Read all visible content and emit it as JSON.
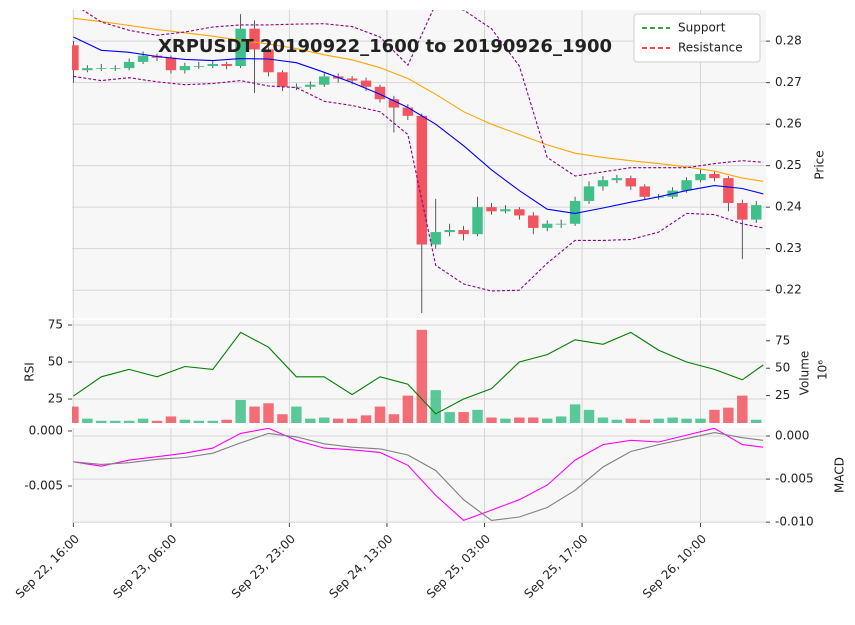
{
  "chart_data": [
    {
      "type": "candlestick",
      "title": "XRPUSDT 20190922_1600 to 20190926_1900",
      "ylabel": "Price",
      "xlim": [
        -0.2,
        99.4
      ],
      "ylim": [
        0.2133,
        0.2875
      ],
      "yticks": [
        0.22,
        0.23,
        0.24,
        0.25,
        0.26,
        0.27,
        0.28
      ],
      "grid": true,
      "up_color": "#3fbf8a",
      "down_color": "#f25560",
      "x": [
        0,
        2,
        4,
        6,
        8,
        10,
        12,
        14,
        16,
        18,
        20,
        22,
        24,
        26,
        28,
        30,
        32,
        34,
        36,
        38,
        40,
        42,
        44,
        46,
        48,
        50,
        52,
        54,
        56,
        58,
        60,
        62,
        64,
        66,
        68,
        70,
        72,
        74,
        76,
        78,
        80,
        82,
        84,
        86,
        88,
        90,
        92,
        94,
        96,
        98
      ],
      "open": [
        0.279,
        0.273,
        0.2735,
        0.2735,
        0.2735,
        0.275,
        0.2765,
        0.276,
        0.273,
        0.274,
        0.274,
        0.2745,
        0.274,
        0.283,
        0.278,
        0.2725,
        0.269,
        0.269,
        0.2695,
        0.2715,
        0.271,
        0.2705,
        0.269,
        0.266,
        0.264,
        0.262,
        0.231,
        0.234,
        0.2345,
        0.2335,
        0.24,
        0.239,
        0.2395,
        0.238,
        0.235,
        0.236,
        0.236,
        0.2415,
        0.245,
        0.2465,
        0.247,
        0.245,
        0.2425,
        0.2425,
        0.244,
        0.2465,
        0.248,
        0.247,
        0.241,
        0.237
      ],
      "high": [
        0.28,
        0.2742,
        0.2745,
        0.2742,
        0.2758,
        0.2775,
        0.277,
        0.2765,
        0.2748,
        0.275,
        0.2752,
        0.275,
        0.2865,
        0.285,
        0.2785,
        0.273,
        0.2698,
        0.2703,
        0.2725,
        0.2722,
        0.2716,
        0.2712,
        0.2695,
        0.2668,
        0.2648,
        0.2625,
        0.242,
        0.236,
        0.2355,
        0.2425,
        0.241,
        0.2405,
        0.24,
        0.2388,
        0.2368,
        0.237,
        0.2425,
        0.2462,
        0.2475,
        0.2478,
        0.2476,
        0.2455,
        0.2432,
        0.2448,
        0.2472,
        0.2492,
        0.2486,
        0.2475,
        0.2418,
        0.2415
      ],
      "low": [
        0.27,
        0.2725,
        0.2728,
        0.2728,
        0.273,
        0.2745,
        0.2752,
        0.2722,
        0.2722,
        0.2733,
        0.2735,
        0.2732,
        0.2735,
        0.2675,
        0.2715,
        0.268,
        0.2682,
        0.2684,
        0.269,
        0.27,
        0.2696,
        0.268,
        0.2652,
        0.258,
        0.261,
        0.2145,
        0.23,
        0.233,
        0.232,
        0.233,
        0.2382,
        0.2385,
        0.237,
        0.2335,
        0.2342,
        0.235,
        0.2355,
        0.2408,
        0.244,
        0.2458,
        0.2442,
        0.2418,
        0.2418,
        0.242,
        0.2435,
        0.246,
        0.2462,
        0.239,
        0.2275,
        0.2362
      ],
      "close": [
        0.273,
        0.2735,
        0.2735,
        0.2735,
        0.275,
        0.2765,
        0.276,
        0.273,
        0.274,
        0.274,
        0.2745,
        0.274,
        0.283,
        0.278,
        0.2725,
        0.269,
        0.269,
        0.2695,
        0.2715,
        0.271,
        0.2705,
        0.269,
        0.266,
        0.264,
        0.262,
        0.231,
        0.234,
        0.2345,
        0.2335,
        0.24,
        0.239,
        0.2395,
        0.238,
        0.235,
        0.236,
        0.236,
        0.2415,
        0.245,
        0.2465,
        0.247,
        0.245,
        0.2425,
        0.2425,
        0.244,
        0.2465,
        0.248,
        0.247,
        0.241,
        0.237,
        0.2405
      ],
      "lines": [
        {
          "color": "orange",
          "dashed": false,
          "x": [
            0,
            4,
            8,
            12,
            16,
            20,
            24,
            28,
            32,
            36,
            40,
            44,
            48,
            52,
            56,
            60,
            64,
            68,
            72,
            76,
            80,
            84,
            88,
            92,
            96,
            99
          ],
          "values": [
            0.2855,
            0.2847,
            0.2838,
            0.2828,
            0.282,
            0.2812,
            0.2802,
            0.2793,
            0.2782,
            0.2767,
            0.2755,
            0.2736,
            0.271,
            0.2672,
            0.263,
            0.26,
            0.2575,
            0.255,
            0.253,
            0.252,
            0.2512,
            0.2505,
            0.2497,
            0.2487,
            0.247,
            0.2462
          ]
        },
        {
          "color": "blue",
          "dashed": false,
          "x": [
            0,
            4,
            8,
            12,
            16,
            20,
            24,
            28,
            32,
            36,
            40,
            44,
            48,
            52,
            56,
            60,
            64,
            68,
            72,
            76,
            80,
            84,
            88,
            92,
            96,
            99
          ],
          "values": [
            0.281,
            0.2778,
            0.2773,
            0.2763,
            0.2756,
            0.2753,
            0.2758,
            0.2757,
            0.2748,
            0.2725,
            0.27,
            0.2672,
            0.264,
            0.26,
            0.2548,
            0.249,
            0.244,
            0.2395,
            0.2385,
            0.2398,
            0.2412,
            0.2425,
            0.244,
            0.2452,
            0.2445,
            0.2432
          ]
        },
        {
          "color": "#8b008b",
          "dashed": true,
          "x": [
            0,
            4,
            8,
            12,
            16,
            20,
            24,
            28,
            32,
            36,
            40,
            44,
            48,
            52,
            56,
            60,
            64,
            68,
            72,
            76,
            80,
            84,
            88,
            92,
            96,
            99
          ],
          "values": [
            0.289,
            0.2846,
            0.2826,
            0.2814,
            0.2822,
            0.2834,
            0.2839,
            0.2839,
            0.2841,
            0.2842,
            0.2835,
            0.281,
            0.2742,
            0.289,
            0.2875,
            0.283,
            0.274,
            0.252,
            0.2475,
            0.2485,
            0.2495,
            0.2495,
            0.2495,
            0.2505,
            0.2512,
            0.2508
          ]
        },
        {
          "color": "#8b008b",
          "dashed": true,
          "x": [
            0,
            4,
            8,
            12,
            16,
            20,
            24,
            28,
            32,
            36,
            40,
            44,
            48,
            52,
            56,
            60,
            64,
            68,
            72,
            76,
            80,
            84,
            88,
            92,
            96,
            99
          ],
          "values": [
            0.2715,
            0.2705,
            0.2712,
            0.2702,
            0.2695,
            0.2698,
            0.2705,
            0.2692,
            0.2688,
            0.2655,
            0.2645,
            0.263,
            0.2575,
            0.226,
            0.2215,
            0.2198,
            0.22,
            0.2265,
            0.232,
            0.232,
            0.2322,
            0.234,
            0.2385,
            0.2382,
            0.236,
            0.235
          ]
        }
      ],
      "legend": [
        {
          "name": "Support",
          "color": "green"
        },
        {
          "name": "Resistance",
          "color": "red"
        }
      ],
      "legend_loc": "upper right"
    },
    {
      "type": "bar",
      "ylabel": "RSI",
      "y2label": "Volume",
      "y2_scale": "10⁶",
      "xlim": [
        -0.2,
        99.4
      ],
      "ylim": [
        8.8,
        78.4
      ],
      "yticks": [
        25,
        50,
        75
      ],
      "y2lim": [
        0,
        94
      ],
      "y2ticks": [
        25,
        50,
        75
      ],
      "grid": true,
      "series": [
        {
          "kind": "line",
          "color": "green",
          "x": [
            0,
            4,
            8,
            12,
            16,
            20,
            24,
            28,
            32,
            36,
            40,
            44,
            48,
            52,
            56,
            60,
            64,
            68,
            72,
            76,
            80,
            84,
            88,
            92,
            96,
            99
          ],
          "values": [
            27,
            40,
            45,
            40,
            47,
            45,
            70,
            60,
            40,
            40,
            28,
            40,
            35,
            15,
            25,
            32,
            50,
            55,
            65,
            62,
            70,
            58,
            50,
            45,
            38,
            48
          ]
        },
        {
          "kind": "bar",
          "axis": "y2",
          "x": [
            0,
            2,
            4,
            6,
            8,
            10,
            12,
            14,
            16,
            18,
            20,
            22,
            24,
            26,
            28,
            30,
            32,
            34,
            36,
            38,
            40,
            42,
            44,
            46,
            48,
            50,
            52,
            54,
            56,
            58,
            60,
            62,
            64,
            66,
            68,
            70,
            72,
            74,
            76,
            78,
            80,
            82,
            84,
            86,
            88,
            90,
            92,
            94,
            96,
            98
          ],
          "values": [
            15,
            4,
            2,
            2,
            2,
            4,
            2,
            6,
            3,
            2,
            2,
            3,
            21,
            15,
            18,
            8,
            15,
            4,
            5,
            4,
            4,
            7,
            15,
            8,
            25,
            85,
            30,
            10,
            10,
            12,
            5,
            4,
            5,
            5,
            4,
            6,
            17,
            12,
            5,
            3,
            4,
            3,
            4,
            5,
            4,
            4,
            12,
            14,
            25,
            3
          ]
        }
      ]
    },
    {
      "type": "line",
      "y2label": "MACD",
      "xlim": [
        -0.2,
        99.4
      ],
      "ylim": [
        -0.00836,
        0.00027
      ],
      "yticks": [
        {
          "value": 0,
          "label": "0.000"
        },
        {
          "value": -0.005,
          "label": "-0.005"
        }
      ],
      "y2lim": [
        -0.0101,
        0.00093
      ],
      "y2ticks": [
        {
          "value": 0,
          "label": "0.000"
        },
        {
          "value": -0.005,
          "label": "-0.005"
        },
        {
          "value": -0.01,
          "label": "-0.010"
        }
      ],
      "grid": true,
      "xticks": [
        {
          "value": 0,
          "label": "Sep 22, 16:00"
        },
        {
          "value": 14,
          "label": "Sep 23, 06:00"
        },
        {
          "value": 31,
          "label": "Sep 23, 23:00"
        },
        {
          "value": 45,
          "label": "Sep 24, 13:00"
        },
        {
          "value": 59,
          "label": "Sep 25, 03:00"
        },
        {
          "value": 73,
          "label": "Sep 25, 17:00"
        },
        {
          "value": 90,
          "label": "Sep 26, 10:00"
        }
      ],
      "series": [
        {
          "color": "magenta",
          "axis": "y2",
          "x": [
            0,
            4,
            8,
            12,
            16,
            20,
            24,
            28,
            32,
            36,
            40,
            44,
            48,
            52,
            56,
            60,
            64,
            68,
            72,
            76,
            80,
            84,
            88,
            92,
            96,
            99
          ],
          "values": [
            -0.003,
            -0.0035,
            -0.0028,
            -0.0024,
            -0.002,
            -0.0014,
            0.0003,
            0.0009,
            -0.0005,
            -0.0014,
            -0.0016,
            -0.0019,
            -0.0034,
            -0.0069,
            -0.0098,
            -0.0086,
            -0.0074,
            -0.0057,
            -0.0028,
            -0.001,
            -0.0005,
            -0.0007,
            0.0001,
            0.0009,
            -0.001,
            -0.0013
          ]
        },
        {
          "color": "gray",
          "axis": "y2",
          "x": [
            0,
            4,
            8,
            12,
            16,
            20,
            24,
            28,
            32,
            36,
            40,
            44,
            48,
            52,
            56,
            60,
            64,
            68,
            72,
            76,
            80,
            84,
            88,
            92,
            96,
            99
          ],
          "values": [
            -0.003,
            -0.0033,
            -0.0031,
            -0.0027,
            -0.0025,
            -0.002,
            -0.0008,
            0.0003,
            -0.0001,
            -0.0009,
            -0.0013,
            -0.0015,
            -0.0022,
            -0.004,
            -0.0074,
            -0.0098,
            -0.0094,
            -0.0083,
            -0.0063,
            -0.0036,
            -0.0018,
            -0.001,
            -0.0003,
            0.0004,
            -0.0002,
            -0.0005
          ]
        }
      ]
    }
  ]
}
